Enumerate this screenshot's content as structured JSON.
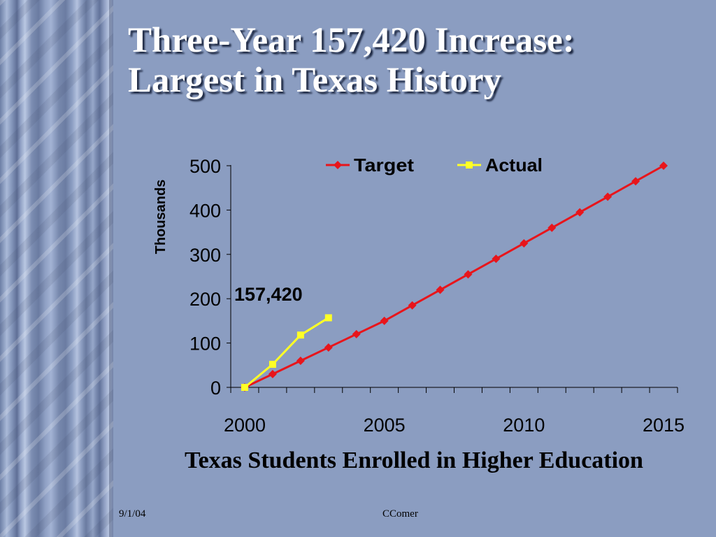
{
  "slide": {
    "title_line1": "Three-Year 157,420 Increase:",
    "title_line2": "Largest in Texas History",
    "caption": "Texas Students Enrolled in Higher Education",
    "footer_date": "9/1/04",
    "footer_author": "CComer"
  },
  "colors": {
    "background": "#8b9dc1",
    "target": "#e8151b",
    "actual": "#ffff26"
  },
  "chart_data": {
    "type": "line",
    "ylabel": "Thousands",
    "xlabel": "",
    "xlim": [
      2000,
      2015
    ],
    "ylim": [
      0,
      500
    ],
    "x_ticks": [
      2000,
      2005,
      2010,
      2015
    ],
    "y_ticks": [
      0,
      100,
      200,
      300,
      400,
      500
    ],
    "legend": "top-center",
    "annotation": "157,420",
    "series": [
      {
        "name": "Target",
        "color": "#e8151b",
        "marker": "diamond",
        "x": [
          2000,
          2001,
          2002,
          2003,
          2004,
          2005,
          2006,
          2007,
          2008,
          2009,
          2010,
          2011,
          2012,
          2013,
          2014,
          2015
        ],
        "values": [
          0,
          30,
          60,
          90,
          120,
          150,
          185,
          220,
          255,
          290,
          325,
          360,
          395,
          430,
          465,
          500
        ]
      },
      {
        "name": "Actual",
        "color": "#ffff26",
        "marker": "square",
        "x": [
          2000,
          2001,
          2002,
          2003
        ],
        "values": [
          0,
          52,
          118,
          157
        ]
      }
    ]
  }
}
